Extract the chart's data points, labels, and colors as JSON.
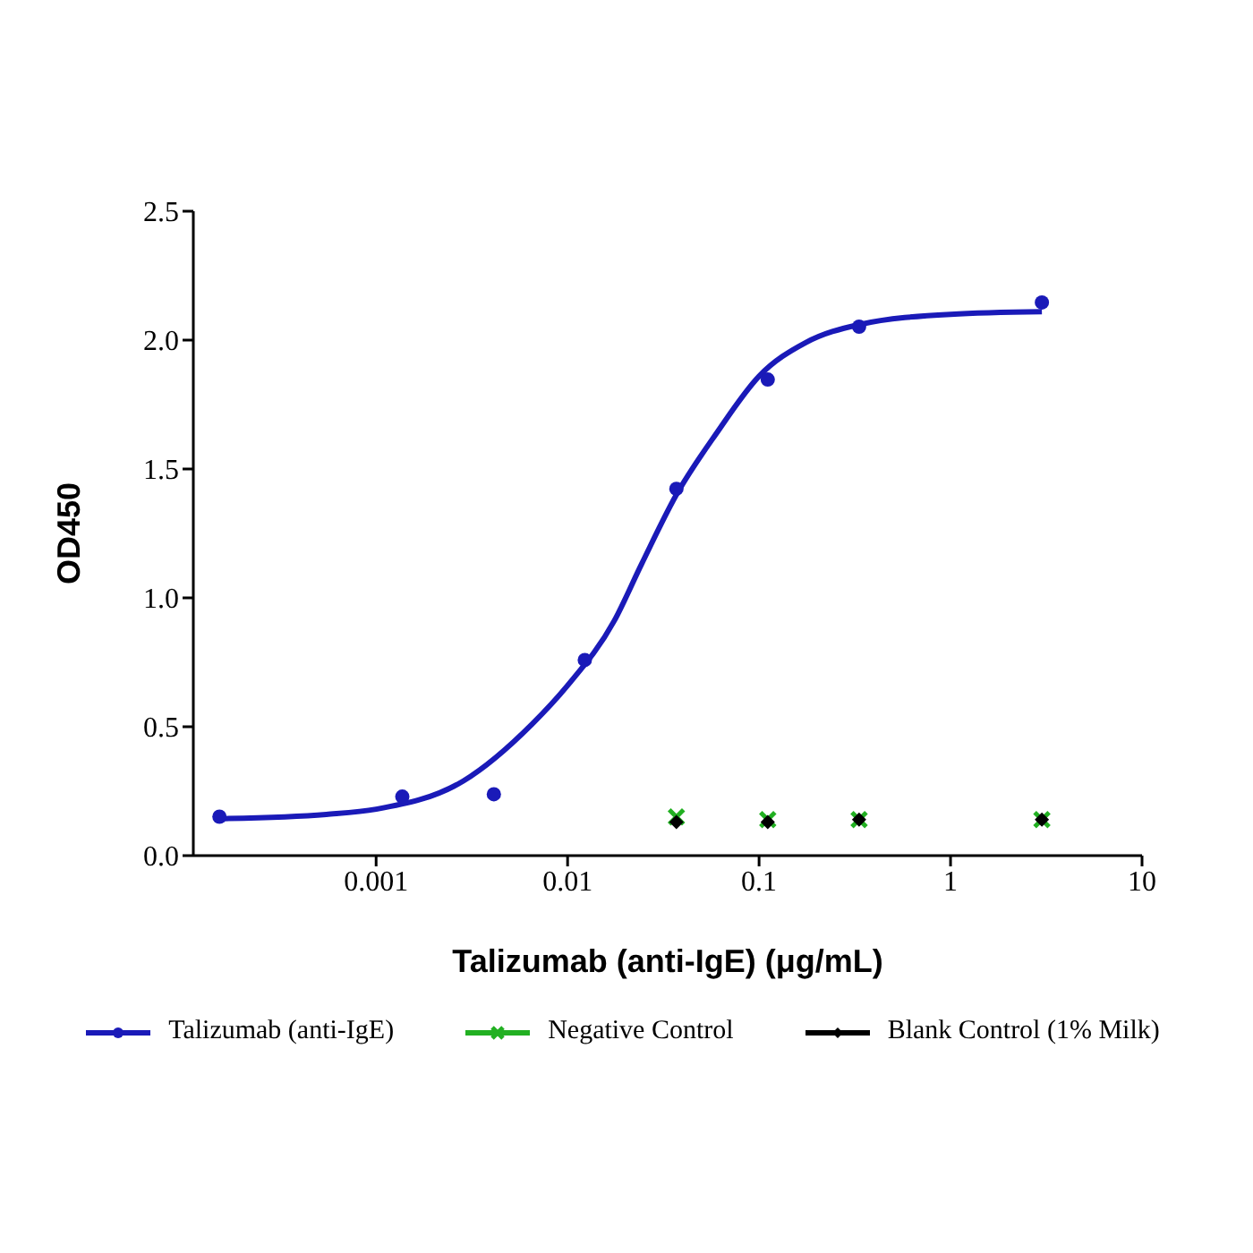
{
  "chart_data": {
    "type": "scatter",
    "xlabel": "Talizumab (anti-IgE) (μg/mL)",
    "ylabel": "OD450",
    "log": "x",
    "xlim": [
      0.000111,
      10
    ],
    "xticks": [
      0.001,
      0.01,
      0.1,
      1,
      10
    ],
    "ylim": [
      0,
      2.5
    ],
    "yticks": [
      {
        "value": 0,
        "label": "0.0"
      },
      {
        "value": 0.5,
        "label": "0.5"
      },
      {
        "value": 1,
        "label": "1.0"
      },
      {
        "value": 1.5,
        "label": "1.5"
      },
      {
        "value": 2,
        "label": "2.0"
      },
      {
        "value": 2.5,
        "label": "2.5"
      }
    ],
    "grid": false,
    "legend": "bottom",
    "series": [
      {
        "name": "Talizumab (anti-IgE)",
        "marker": "circle",
        "color": "#1a1ab8",
        "x": [
          0.000152,
          0.00137,
          0.00412,
          0.0123,
          0.037,
          0.111,
          0.333,
          3
        ],
        "values": [
          0.151,
          0.229,
          0.238,
          0.759,
          1.423,
          1.847,
          2.052,
          2.146
        ]
      },
      {
        "type": "line",
        "marker": "none",
        "color": "#1a1ab8",
        "x": [
          0.00015,
          0.00055,
          0.001,
          0.00286,
          0.00652,
          0.01,
          0.0175,
          0.0243,
          0.037,
          0.0601,
          0.1,
          0.175,
          0.333,
          1,
          3
        ],
        "values": [
          0.143,
          0.16,
          0.18,
          0.29,
          0.51,
          0.66,
          0.91,
          1.13,
          1.4,
          1.64,
          1.86,
          1.99,
          2.06,
          2.1,
          2.11
        ]
      },
      {
        "name": "Negative Control",
        "marker": "cross",
        "color": "#22b022",
        "x": [
          0.037,
          0.111,
          0.333,
          3
        ],
        "values": [
          0.15,
          0.14,
          0.14,
          0.14
        ]
      },
      {
        "name": "Blank Control (1% Milk)",
        "marker": "diamond",
        "color": "#000000",
        "x": [
          0.037,
          0.111,
          0.333,
          3
        ],
        "values": [
          0.13,
          0.13,
          0.14,
          0.14
        ]
      }
    ]
  }
}
